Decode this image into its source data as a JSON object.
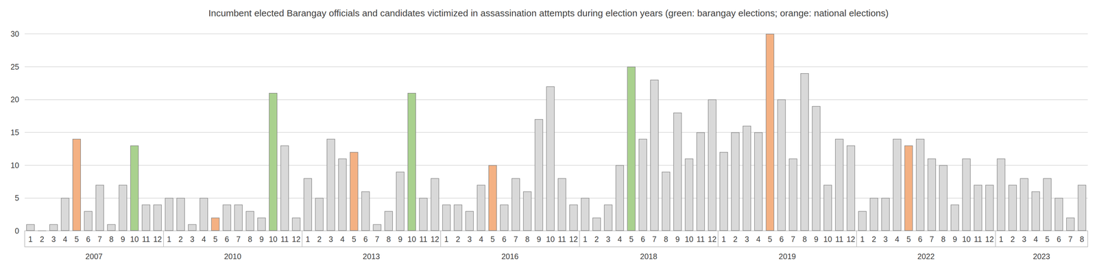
{
  "chart_data": {
    "type": "bar",
    "title": "Incumbent elected Barangay officials and candidates victimized in assassination attempts during election years (green: barangay elections; orange: national elections)",
    "categories": [
      "1",
      "2",
      "3",
      "4",
      "5",
      "6",
      "7",
      "8",
      "9",
      "10",
      "11",
      "12",
      "1",
      "2",
      "3",
      "4",
      "5",
      "6",
      "7",
      "8",
      "9",
      "10",
      "11",
      "12",
      "1",
      "2",
      "3",
      "4",
      "5",
      "6",
      "7",
      "8",
      "9",
      "10",
      "11",
      "12",
      "1",
      "2",
      "3",
      "4",
      "5",
      "6",
      "7",
      "8",
      "9",
      "10",
      "11",
      "12",
      "1",
      "2",
      "3",
      "4",
      "5",
      "6",
      "7",
      "8",
      "9",
      "10",
      "11",
      "12",
      "1",
      "2",
      "3",
      "4",
      "5",
      "6",
      "7",
      "8",
      "9",
      "10",
      "11",
      "12",
      "1",
      "2",
      "3",
      "4",
      "5",
      "6",
      "7",
      "8",
      "9",
      "10",
      "11",
      "12",
      "1",
      "2",
      "3",
      "4",
      "5",
      "6",
      "7",
      "8"
    ],
    "x_groups": [
      "2007",
      "2007",
      "2007",
      "2007",
      "2007",
      "2007",
      "2007",
      "2007",
      "2007",
      "2007",
      "2007",
      "2007",
      "2010",
      "2010",
      "2010",
      "2010",
      "2010",
      "2010",
      "2010",
      "2010",
      "2010",
      "2010",
      "2010",
      "2010",
      "2013",
      "2013",
      "2013",
      "2013",
      "2013",
      "2013",
      "2013",
      "2013",
      "2013",
      "2013",
      "2013",
      "2013",
      "2016",
      "2016",
      "2016",
      "2016",
      "2016",
      "2016",
      "2016",
      "2016",
      "2016",
      "2016",
      "2016",
      "2016",
      "2018",
      "2018",
      "2018",
      "2018",
      "2018",
      "2018",
      "2018",
      "2018",
      "2018",
      "2018",
      "2018",
      "2018",
      "2019",
      "2019",
      "2019",
      "2019",
      "2019",
      "2019",
      "2019",
      "2019",
      "2019",
      "2019",
      "2019",
      "2019",
      "2022",
      "2022",
      "2022",
      "2022",
      "2022",
      "2022",
      "2022",
      "2022",
      "2022",
      "2022",
      "2022",
      "2022",
      "2023",
      "2023",
      "2023",
      "2023",
      "2023",
      "2023",
      "2023",
      "2023"
    ],
    "values": [
      1,
      0,
      1,
      5,
      14,
      3,
      7,
      1,
      7,
      13,
      4,
      4,
      5,
      5,
      1,
      5,
      2,
      4,
      4,
      3,
      2,
      21,
      13,
      2,
      8,
      5,
      14,
      11,
      12,
      6,
      1,
      3,
      9,
      21,
      5,
      8,
      4,
      4,
      3,
      7,
      10,
      4,
      8,
      6,
      17,
      22,
      8,
      4,
      5,
      2,
      4,
      10,
      25,
      14,
      23,
      9,
      18,
      11,
      15,
      20,
      12,
      15,
      16,
      15,
      30,
      20,
      11,
      24,
      19,
      7,
      14,
      13,
      3,
      5,
      5,
      14,
      13,
      14,
      11,
      10,
      4,
      11,
      7,
      7,
      11,
      7,
      8,
      6,
      8,
      5,
      2,
      7
    ],
    "colors": [
      "#d9d9d9",
      "#d9d9d9",
      "#d9d9d9",
      "#d9d9d9",
      "#f4b183",
      "#d9d9d9",
      "#d9d9d9",
      "#d9d9d9",
      "#d9d9d9",
      "#a9d18e",
      "#d9d9d9",
      "#d9d9d9",
      "#d9d9d9",
      "#d9d9d9",
      "#d9d9d9",
      "#d9d9d9",
      "#f4b183",
      "#d9d9d9",
      "#d9d9d9",
      "#d9d9d9",
      "#d9d9d9",
      "#a9d18e",
      "#d9d9d9",
      "#d9d9d9",
      "#d9d9d9",
      "#d9d9d9",
      "#d9d9d9",
      "#d9d9d9",
      "#f4b183",
      "#d9d9d9",
      "#d9d9d9",
      "#d9d9d9",
      "#d9d9d9",
      "#a9d18e",
      "#d9d9d9",
      "#d9d9d9",
      "#d9d9d9",
      "#d9d9d9",
      "#d9d9d9",
      "#d9d9d9",
      "#f4b183",
      "#d9d9d9",
      "#d9d9d9",
      "#d9d9d9",
      "#d9d9d9",
      "#d9d9d9",
      "#d9d9d9",
      "#d9d9d9",
      "#d9d9d9",
      "#d9d9d9",
      "#d9d9d9",
      "#d9d9d9",
      "#a9d18e",
      "#d9d9d9",
      "#d9d9d9",
      "#d9d9d9",
      "#d9d9d9",
      "#d9d9d9",
      "#d9d9d9",
      "#d9d9d9",
      "#d9d9d9",
      "#d9d9d9",
      "#d9d9d9",
      "#d9d9d9",
      "#f4b183",
      "#d9d9d9",
      "#d9d9d9",
      "#d9d9d9",
      "#d9d9d9",
      "#d9d9d9",
      "#d9d9d9",
      "#d9d9d9",
      "#d9d9d9",
      "#d9d9d9",
      "#d9d9d9",
      "#d9d9d9",
      "#f4b183",
      "#d9d9d9",
      "#d9d9d9",
      "#d9d9d9",
      "#d9d9d9",
      "#d9d9d9",
      "#d9d9d9",
      "#d9d9d9",
      "#d9d9d9",
      "#d9d9d9",
      "#d9d9d9",
      "#d9d9d9",
      "#d9d9d9",
      "#d9d9d9",
      "#d9d9d9",
      "#d9d9d9"
    ],
    "ylim": [
      0,
      30
    ],
    "yticks": [
      0,
      5,
      10,
      15,
      20,
      25,
      30
    ],
    "grid": true
  }
}
